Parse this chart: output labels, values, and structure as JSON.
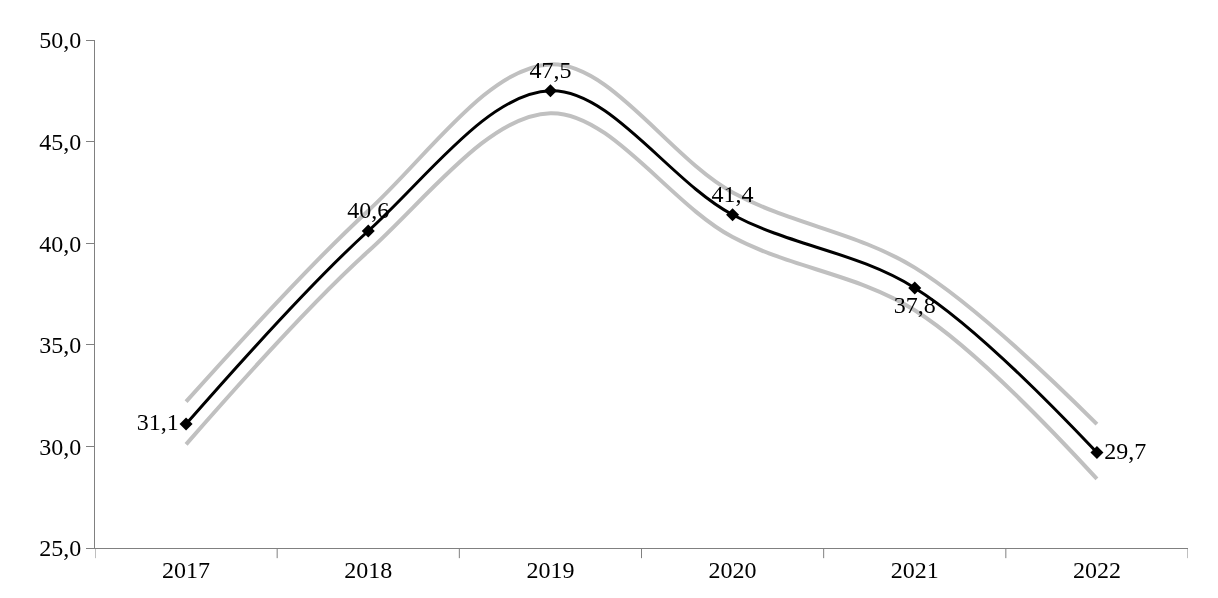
{
  "chart_data": {
    "type": "line",
    "categories": [
      "2017",
      "2018",
      "2019",
      "2020",
      "2021",
      "2022"
    ],
    "series": [
      {
        "color": "#c0c0c0",
        "values": [
          32.2,
          41.6,
          48.8,
          42.5,
          38.8,
          31.1
        ],
        "marker": "none"
      },
      {
        "color": "#c0c0c0",
        "values": [
          30.1,
          39.6,
          46.4,
          40.3,
          36.7,
          28.4
        ],
        "marker": "none"
      },
      {
        "color": "#000000",
        "values": [
          31.1,
          40.6,
          47.5,
          41.4,
          37.8,
          29.7
        ],
        "marker": "diamond",
        "value_labels": [
          "31,1",
          "40,6",
          "47,5",
          "41,4",
          "37,8",
          "29,7"
        ]
      }
    ],
    "ylim": [
      25,
      50
    ],
    "yticks": [
      {
        "value": 25,
        "label": "25,0"
      },
      {
        "value": 30,
        "label": "30,0"
      },
      {
        "value": 35,
        "label": "35,0"
      },
      {
        "value": 40,
        "label": "40,0"
      },
      {
        "value": 45,
        "label": "45,0"
      },
      {
        "value": 50,
        "label": "50,0"
      }
    ],
    "line_style": "solid"
  }
}
